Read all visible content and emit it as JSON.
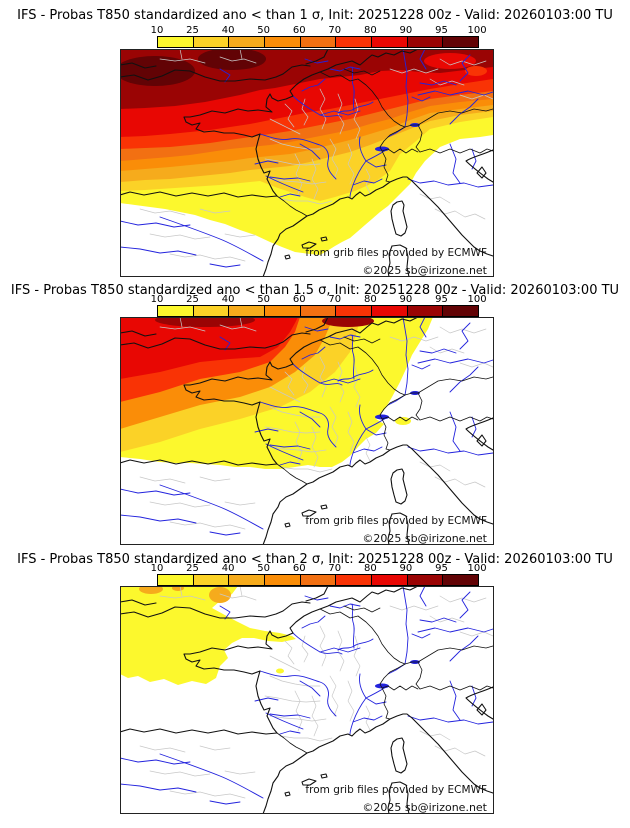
{
  "colorbar": {
    "ticks": [
      "10",
      "25",
      "40",
      "50",
      "60",
      "70",
      "80",
      "90",
      "95",
      "100"
    ],
    "colors": [
      "#FCF82D",
      "#FBD227",
      "#F6AB1C",
      "#FA8D08",
      "#F27012",
      "#F93305",
      "#E80703",
      "#9A0404",
      "#620305"
    ],
    "border_color": "#000000"
  },
  "map_style": {
    "sea_and_nodata_color": "#FFFFFF",
    "river_color": "#2323DD",
    "admin_boundary_color": "#C8C8C8",
    "coast_border_color": "#111111",
    "frame_color": "#222222"
  },
  "panels": [
    {
      "title": "IFS - Probas T850  standardized ano < than 1 σ, Init: 20251228 00z - Valid: 20260103:00 TU",
      "sigma_threshold": "1",
      "attribution": "from grib files provided by ECMWF",
      "copyright": "©2025 sb@irizone.net"
    },
    {
      "title": "IFS - Probas T850  standardized ano < than 1.5 σ, Init: 20251228 00z - Valid: 20260103:00 TU",
      "sigma_threshold": "1.5",
      "attribution": "from grib files provided by ECMWF",
      "copyright": "©2025 sb@irizone.net"
    },
    {
      "title": "IFS - Probas T850  standardized ano < than 2 σ, Init: 20251228 00z - Valid: 20260103:00 TU",
      "sigma_threshold": "2",
      "attribution": "from grib files provided by ECMWF",
      "copyright": "©2025 sb@irizone.net"
    }
  ],
  "init": "20251228 00z",
  "valid": "20260103:00 TU",
  "model": "IFS",
  "parameter": "Probas T850"
}
